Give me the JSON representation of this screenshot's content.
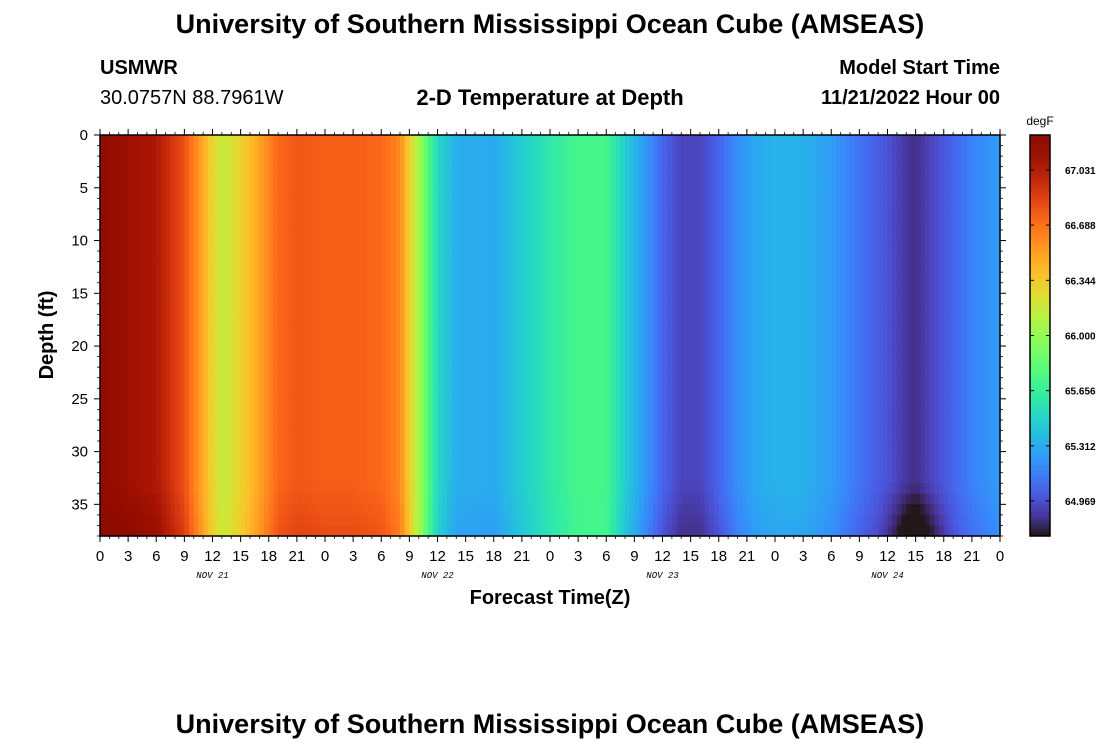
{
  "header": {
    "title": "University of Southern Mississippi Ocean Cube (AMSEAS)",
    "station_name": "USMWR",
    "station_coords": "30.0757N  88.7961W",
    "plot_title": "2-D Temperature at Depth",
    "model_start_label": "Model Start Time",
    "model_start_value": "11/21/2022 Hour 00"
  },
  "footer": {
    "title": "University of Southern Mississippi Ocean Cube (AMSEAS)"
  },
  "colors": {
    "min": "#2d1e5a",
    "max": "#7a0403"
  },
  "chart_data": {
    "type": "heatmap",
    "title": "2-D Temperature at Depth",
    "xlabel": "Forecast Time(Z)",
    "ylabel": "Depth (ft)",
    "x_start": "11/21/2022 Hour 00",
    "x_ticks": [
      "0",
      "3",
      "6",
      "9",
      "12",
      "15",
      "18",
      "21",
      "0",
      "3",
      "6",
      "9",
      "12",
      "15",
      "18",
      "21",
      "0",
      "3",
      "6",
      "9",
      "12",
      "15",
      "18",
      "21",
      "0",
      "3",
      "6",
      "9",
      "12",
      "15",
      "18",
      "21",
      "0"
    ],
    "x_hours": [
      0,
      3,
      6,
      9,
      12,
      15,
      18,
      21,
      24,
      27,
      30,
      33,
      36,
      39,
      42,
      45,
      48,
      51,
      54,
      57,
      60,
      63,
      66,
      69,
      72,
      75,
      78,
      81,
      84,
      87,
      90,
      93,
      96
    ],
    "date_labels": [
      {
        "text": "NOV 21",
        "hour": 12
      },
      {
        "text": "NOV 22",
        "hour": 36
      },
      {
        "text": "NOV 23",
        "hour": 60
      },
      {
        "text": "NOV 24",
        "hour": 84
      }
    ],
    "xlim": [
      0,
      96
    ],
    "y_ticks": [
      0,
      5,
      10,
      15,
      20,
      25,
      30,
      35
    ],
    "ylim": [
      0,
      38
    ],
    "y_inverted": true,
    "colorbar": {
      "unit": "degF",
      "labels": [
        "67.031",
        "66.688",
        "66.344",
        "66.000",
        "65.656",
        "65.312",
        "64.969"
      ],
      "label_values": [
        67.031,
        66.688,
        66.344,
        66.0,
        65.656,
        65.312,
        64.969
      ],
      "vmin": 64.75,
      "vmax": 67.25,
      "colormap": "turbo"
    },
    "surface_temperature_series": {
      "hours": [
        0,
        3,
        6,
        9,
        12,
        13,
        15,
        17,
        19,
        21,
        24,
        27,
        30,
        32,
        34,
        36,
        38,
        42,
        45,
        48,
        51,
        54,
        56,
        58,
        60,
        62,
        64,
        66,
        68,
        70,
        72,
        75,
        78,
        81,
        84,
        86,
        87,
        88,
        90,
        93,
        96
      ],
      "values": [
        67.19,
        67.12,
        67.05,
        66.8,
        66.3,
        66.15,
        66.3,
        66.5,
        66.72,
        66.78,
        66.75,
        66.75,
        66.72,
        66.6,
        66.05,
        65.5,
        65.32,
        65.3,
        65.45,
        65.6,
        65.72,
        65.72,
        65.45,
        65.25,
        65.05,
        64.93,
        64.93,
        65.05,
        65.2,
        65.3,
        65.33,
        65.33,
        65.25,
        65.1,
        64.98,
        64.88,
        64.85,
        64.9,
        65.0,
        65.15,
        65.25
      ]
    }
  }
}
